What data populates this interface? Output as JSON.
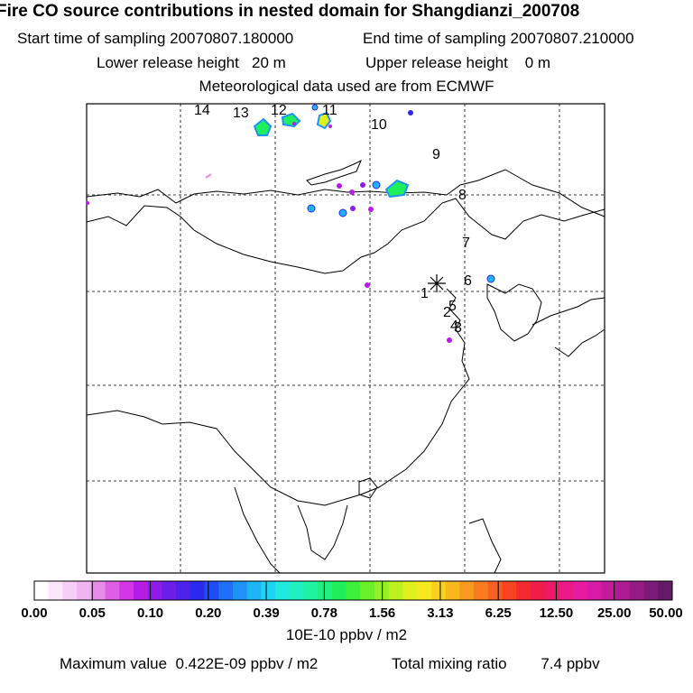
{
  "header": {
    "title": "Fire CO source contributions in nested domain for Shangdianzi_200708",
    "start_label": "Start time of sampling",
    "start_value": "20070807.180000",
    "end_label": "End time of sampling",
    "end_value": "20070807.210000",
    "lower_label": "Lower release height",
    "lower_value": "20 m",
    "upper_label": "Upper release height",
    "upper_value": "0 m",
    "met_text": "Meteorological data used are from ECMWF"
  },
  "map": {
    "station_marker": "asterisk",
    "trajectory_labels": [
      "1",
      "2",
      "3",
      "4",
      "5",
      "6",
      "7",
      "8",
      "9",
      "10",
      "11",
      "12",
      "13",
      "14"
    ],
    "colors": {
      "frame": "#000000",
      "grid": "#000000",
      "coast": "#000000"
    }
  },
  "colorbar": {
    "tick_labels": [
      "0.00",
      "0.05",
      "0.10",
      "0.20",
      "0.39",
      "0.78",
      "1.56",
      "3.13",
      "6.25",
      "12.50",
      "25.00",
      "50.00"
    ],
    "colors": [
      "#ffffff",
      "#fbe6fb",
      "#f6cdf6",
      "#f0b4f0",
      "#e88ae8",
      "#de5fe3",
      "#d236e6",
      "#b51de6",
      "#8f1be8",
      "#6a1ee8",
      "#4a22ea",
      "#2b28f0",
      "#1f4cf5",
      "#1f6ff7",
      "#1f92f8",
      "#1fb4f8",
      "#1fd4f2",
      "#1fe8dc",
      "#1ff0c0",
      "#1ff2a2",
      "#1ff080",
      "#1fef5a",
      "#3ff03a",
      "#6af029",
      "#95f023",
      "#bdf01f",
      "#e0f01f",
      "#f5ea1f",
      "#f8d21f",
      "#f8b61f",
      "#f89a1f",
      "#f87c1f",
      "#f8601f",
      "#f8431f",
      "#f42a2f",
      "#f01c4a",
      "#ee1a68",
      "#ec1a86",
      "#e81aa2",
      "#d81aa6",
      "#c41a9c",
      "#ae1a92",
      "#961a86",
      "#7c1a78",
      "#641a66"
    ],
    "unit": "10E-10 ppbv / m2"
  },
  "footer": {
    "max_label": "Maximum value",
    "max_value": "0.422E-09 ppbv / m2",
    "total_label": "Total mixing ratio",
    "total_value": "7.4 ppbv"
  }
}
